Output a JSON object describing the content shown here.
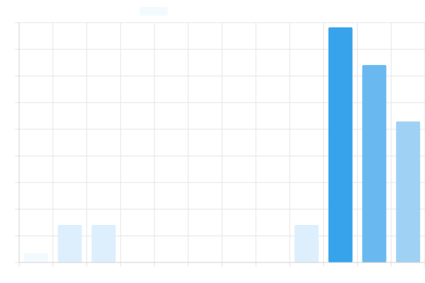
{
  "legend": {
    "swatch_color": "#F3FAFE"
  },
  "chart_data": {
    "type": "bar",
    "title": "",
    "xlabel": "",
    "ylabel": "",
    "grid": true,
    "legend_placement": "top-center",
    "categories": [
      "",
      "",
      "",
      "",
      "",
      "",
      "",
      "",
      "",
      "",
      "",
      ""
    ],
    "series": [
      {
        "values": [
          1,
          4,
          4,
          0,
          0,
          0,
          0,
          0,
          4,
          25,
          21,
          15
        ],
        "colors": [
          "#F3FAFE",
          "#DDEFFC",
          "#DDEFFC",
          "#DDEFFC",
          "#DDEFFC",
          "#DDEFFC",
          "#DDEFFC",
          "#DDEFFC",
          "#DDEFFC",
          "#36A3EB",
          "#69B9F0",
          "#9FD1F5"
        ]
      }
    ],
    "ylim": [
      0,
      25.5
    ]
  }
}
